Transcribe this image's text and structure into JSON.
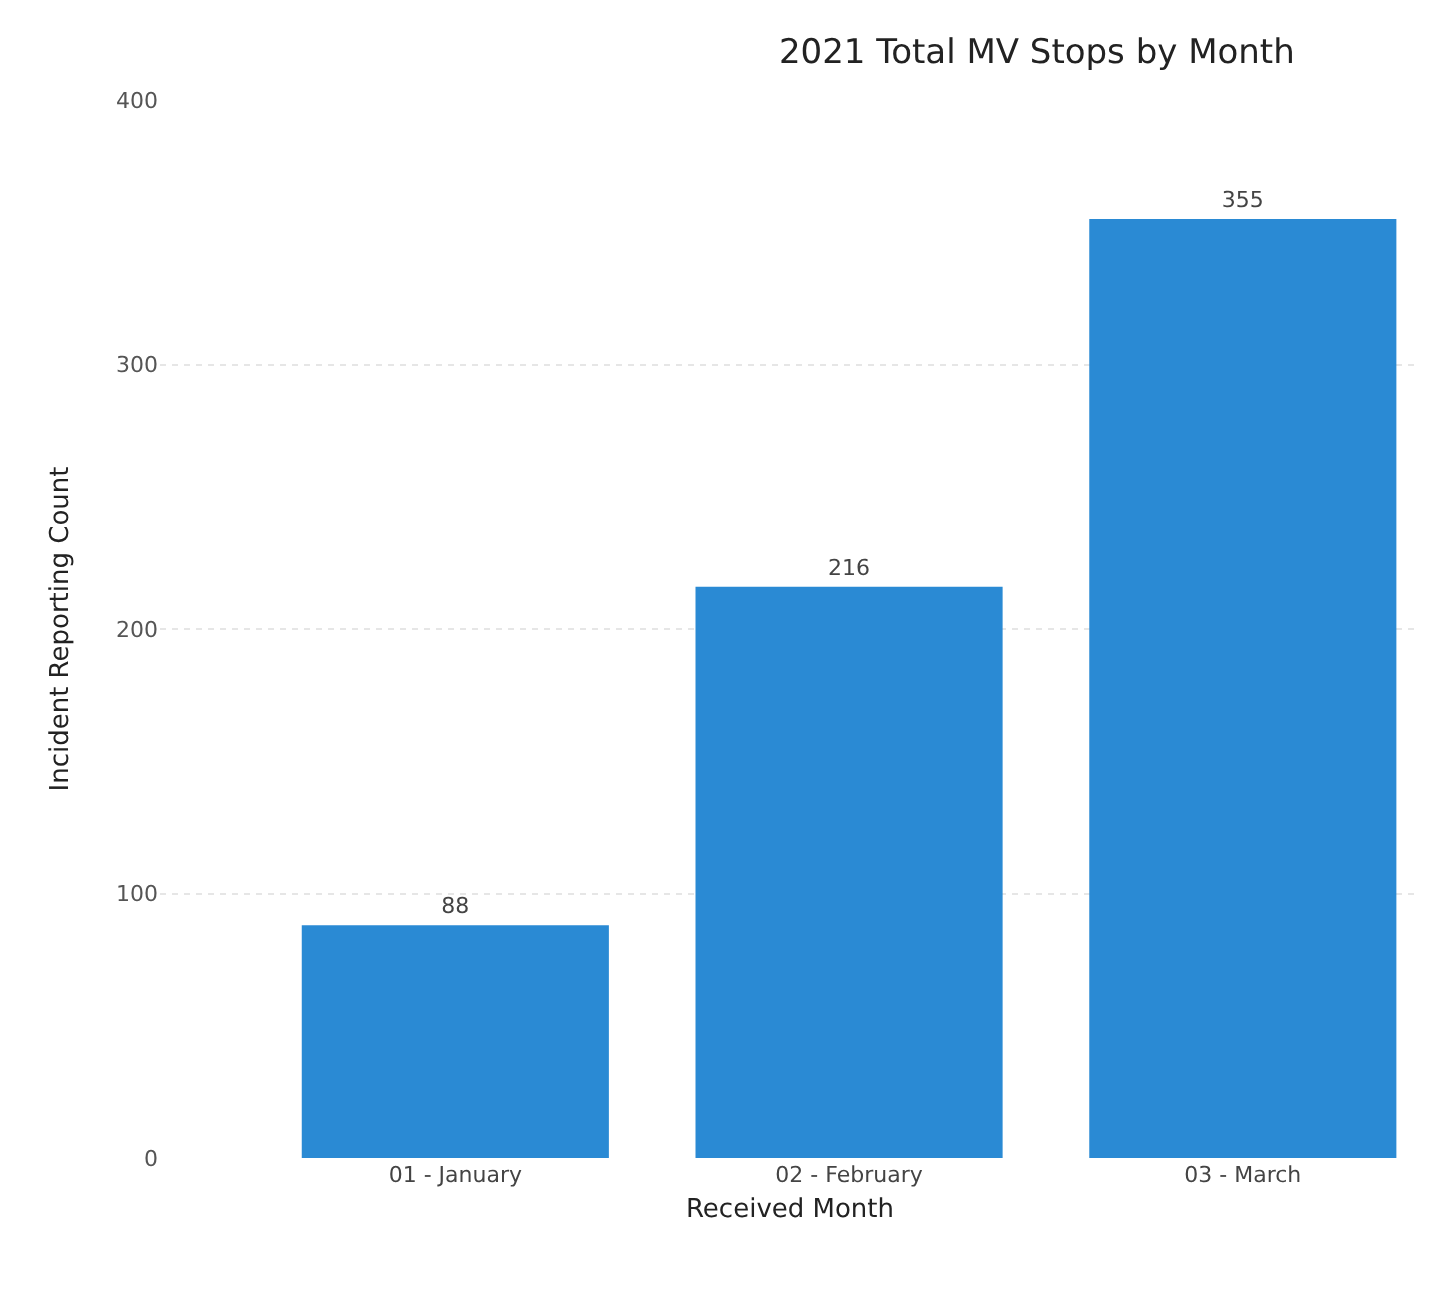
{
  "chart_data": {
    "type": "bar",
    "title": "2021 Total MV Stops by Month",
    "xlabel": "Received Month",
    "ylabel": "Incident Reporting Count",
    "categories": [
      "01 - January",
      "02 - February",
      "03 - March"
    ],
    "values": [
      88,
      216,
      355
    ],
    "color": "#2a8ad4",
    "ylim": [
      0,
      400
    ],
    "yticks": [
      0,
      100,
      200,
      300,
      400
    ],
    "grid": "y",
    "data_labels": true
  }
}
